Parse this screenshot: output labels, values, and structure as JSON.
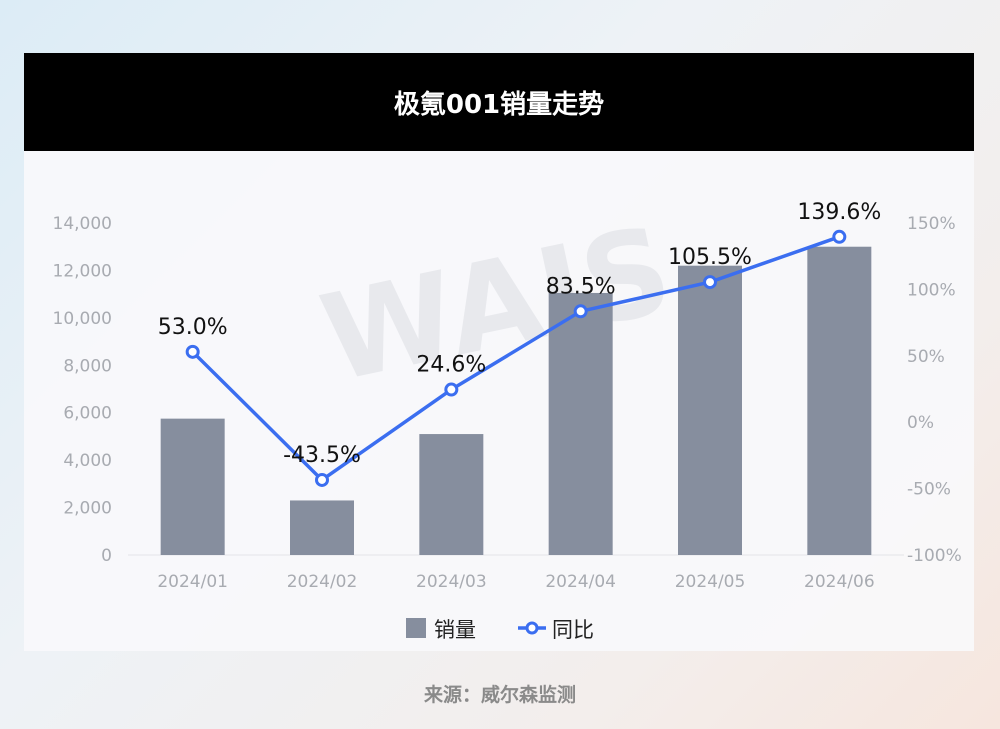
{
  "title": "极氪001销量走势",
  "source": "来源：威尔森监测",
  "colors": {
    "bar": "#868e9e",
    "line": "#3b6ef0",
    "title_bg": "#000000"
  },
  "chart_data": {
    "type": "bar",
    "categories": [
      "2024/01",
      "2024/02",
      "2024/03",
      "2024/04",
      "2024/05",
      "2024/06"
    ],
    "series": [
      {
        "name": "销量",
        "type": "bar",
        "axis": "left",
        "values": [
          5750,
          2300,
          5100,
          11050,
          12200,
          13000
        ]
      },
      {
        "name": "同比",
        "type": "line",
        "axis": "right",
        "values": [
          53.0,
          -43.5,
          24.6,
          83.5,
          105.5,
          139.6
        ],
        "labels": [
          "53.0%",
          "-43.5%",
          "24.6%",
          "83.5%",
          "105.5%",
          "139.6%"
        ]
      }
    ],
    "y_left": {
      "range": [
        0,
        14000
      ],
      "ticks": [
        "0",
        "2,000",
        "4,000",
        "6,000",
        "8,000",
        "10,000",
        "12,000",
        "14,000"
      ]
    },
    "y_right": {
      "range": [
        -100,
        150
      ],
      "ticks": [
        "-100%",
        "-50%",
        "0%",
        "50%",
        "100%",
        "150%"
      ]
    },
    "legend": {
      "position": "bottom",
      "items": [
        "销量",
        "同比"
      ]
    },
    "watermark": "WAIS",
    "grid": false
  }
}
